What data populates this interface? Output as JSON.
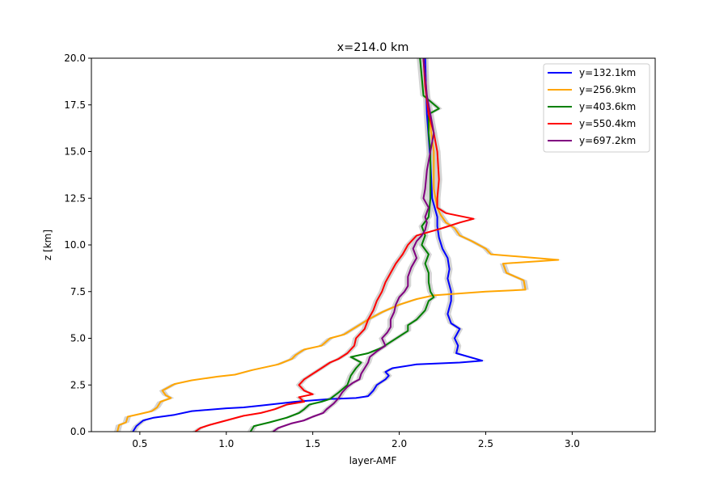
{
  "chart_data": {
    "type": "line",
    "title": "x=214.0 km",
    "xlabel": "layer-AMF",
    "ylabel": "z [km]",
    "xlim": [
      0.22,
      3.48
    ],
    "ylim": [
      0,
      20
    ],
    "xticks": [
      0.5,
      1.0,
      1.5,
      2.0,
      2.5,
      3.0
    ],
    "xtick_labels": [
      "0.5",
      "1.0",
      "1.5",
      "2.0",
      "2.5",
      "3.0"
    ],
    "yticks": [
      0,
      2.5,
      5,
      7.5,
      10,
      12.5,
      15,
      17.5,
      20
    ],
    "ytick_labels": [
      "0.0",
      "2.5",
      "5.0",
      "7.5",
      "10.0",
      "12.5",
      "15.0",
      "17.5",
      "20.0"
    ],
    "grid": false,
    "legend_position": "upper right",
    "uncertainty_band_color": "#cccccc",
    "series": [
      {
        "name": "y=132.1km",
        "color": "#0000ff",
        "points": [
          [
            0.46,
            0
          ],
          [
            0.48,
            0.3
          ],
          [
            0.52,
            0.6
          ],
          [
            0.58,
            0.75
          ],
          [
            0.7,
            0.9
          ],
          [
            0.8,
            1.1
          ],
          [
            1.0,
            1.25
          ],
          [
            1.1,
            1.3
          ],
          [
            1.2,
            1.4
          ],
          [
            1.4,
            1.6
          ],
          [
            1.6,
            1.75
          ],
          [
            1.75,
            1.8
          ],
          [
            1.82,
            1.9
          ],
          [
            1.85,
            2.2
          ],
          [
            1.87,
            2.5
          ],
          [
            1.92,
            2.8
          ],
          [
            1.94,
            3.0
          ],
          [
            1.92,
            3.2
          ],
          [
            1.96,
            3.4
          ],
          [
            2.1,
            3.6
          ],
          [
            2.35,
            3.7
          ],
          [
            2.48,
            3.8
          ],
          [
            2.33,
            4.2
          ],
          [
            2.34,
            4.6
          ],
          [
            2.32,
            5.0
          ],
          [
            2.35,
            5.5
          ],
          [
            2.3,
            5.8
          ],
          [
            2.28,
            6.3
          ],
          [
            2.3,
            7.0
          ],
          [
            2.3,
            7.5
          ],
          [
            2.28,
            8.2
          ],
          [
            2.29,
            8.7
          ],
          [
            2.28,
            9.3
          ],
          [
            2.25,
            9.8
          ],
          [
            2.23,
            10.4
          ],
          [
            2.22,
            11.0
          ],
          [
            2.22,
            11.5
          ],
          [
            2.19,
            12.5
          ],
          [
            2.18,
            14.5
          ],
          [
            2.16,
            17.0
          ],
          [
            2.15,
            20.0
          ]
        ]
      },
      {
        "name": "y=256.9km",
        "color": "#ffa500",
        "points": [
          [
            0.37,
            0
          ],
          [
            0.38,
            0.35
          ],
          [
            0.42,
            0.5
          ],
          [
            0.43,
            0.8
          ],
          [
            0.5,
            0.95
          ],
          [
            0.57,
            1.1
          ],
          [
            0.6,
            1.3
          ],
          [
            0.62,
            1.6
          ],
          [
            0.68,
            1.8
          ],
          [
            0.65,
            1.95
          ],
          [
            0.63,
            2.2
          ],
          [
            0.7,
            2.55
          ],
          [
            0.8,
            2.75
          ],
          [
            0.95,
            2.95
          ],
          [
            1.05,
            3.05
          ],
          [
            1.15,
            3.3
          ],
          [
            1.3,
            3.6
          ],
          [
            1.38,
            3.9
          ],
          [
            1.4,
            4.1
          ],
          [
            1.45,
            4.4
          ],
          [
            1.55,
            4.6
          ],
          [
            1.6,
            5.0
          ],
          [
            1.68,
            5.2
          ],
          [
            1.75,
            5.6
          ],
          [
            1.82,
            6.0
          ],
          [
            1.9,
            6.4
          ],
          [
            2.0,
            6.8
          ],
          [
            2.1,
            7.1
          ],
          [
            2.2,
            7.3
          ],
          [
            2.5,
            7.5
          ],
          [
            2.73,
            7.6
          ],
          [
            2.72,
            8.1
          ],
          [
            2.62,
            8.5
          ],
          [
            2.6,
            9.0
          ],
          [
            2.92,
            9.2
          ],
          [
            2.53,
            9.5
          ],
          [
            2.5,
            9.8
          ],
          [
            2.42,
            10.2
          ],
          [
            2.35,
            10.5
          ],
          [
            2.32,
            10.9
          ],
          [
            2.27,
            11.2
          ],
          [
            2.24,
            11.6
          ],
          [
            2.22,
            12.0
          ],
          [
            2.2,
            13.0
          ],
          [
            2.2,
            15.0
          ],
          [
            2.17,
            17.0
          ],
          [
            2.14,
            20.0
          ]
        ]
      },
      {
        "name": "y=403.6km",
        "color": "#008000",
        "points": [
          [
            1.14,
            0
          ],
          [
            1.16,
            0.3
          ],
          [
            1.25,
            0.5
          ],
          [
            1.35,
            0.75
          ],
          [
            1.42,
            1.0
          ],
          [
            1.45,
            1.2
          ],
          [
            1.48,
            1.45
          ],
          [
            1.55,
            1.6
          ],
          [
            1.6,
            1.75
          ],
          [
            1.65,
            2.1
          ],
          [
            1.7,
            2.5
          ],
          [
            1.72,
            3.0
          ],
          [
            1.75,
            3.4
          ],
          [
            1.78,
            3.7
          ],
          [
            1.72,
            4.0
          ],
          [
            1.82,
            4.2
          ],
          [
            1.9,
            4.5
          ],
          [
            1.95,
            4.8
          ],
          [
            2.0,
            5.1
          ],
          [
            2.05,
            5.4
          ],
          [
            2.05,
            5.7
          ],
          [
            2.1,
            6.0
          ],
          [
            2.15,
            6.5
          ],
          [
            2.17,
            7.0
          ],
          [
            2.2,
            7.2
          ],
          [
            2.18,
            7.5
          ],
          [
            2.17,
            8.0
          ],
          [
            2.17,
            8.5
          ],
          [
            2.15,
            9.0
          ],
          [
            2.17,
            9.5
          ],
          [
            2.13,
            10.0
          ],
          [
            2.15,
            10.5
          ],
          [
            2.13,
            11.0
          ],
          [
            2.17,
            11.5
          ],
          [
            2.18,
            12.5
          ],
          [
            2.18,
            14.0
          ],
          [
            2.18,
            15.0
          ],
          [
            2.17,
            16.0
          ],
          [
            2.17,
            17.0
          ],
          [
            2.23,
            17.3
          ],
          [
            2.14,
            18.0
          ],
          [
            2.13,
            19.0
          ],
          [
            2.12,
            20.0
          ]
        ]
      },
      {
        "name": "y=550.4km",
        "color": "#ff0000",
        "points": [
          [
            0.82,
            0
          ],
          [
            0.85,
            0.2
          ],
          [
            0.9,
            0.35
          ],
          [
            1.0,
            0.6
          ],
          [
            1.1,
            0.85
          ],
          [
            1.2,
            1.0
          ],
          [
            1.28,
            1.2
          ],
          [
            1.35,
            1.45
          ],
          [
            1.45,
            1.6
          ],
          [
            1.42,
            1.85
          ],
          [
            1.5,
            2.0
          ],
          [
            1.45,
            2.2
          ],
          [
            1.42,
            2.5
          ],
          [
            1.45,
            2.8
          ],
          [
            1.5,
            3.1
          ],
          [
            1.55,
            3.4
          ],
          [
            1.6,
            3.7
          ],
          [
            1.65,
            3.9
          ],
          [
            1.7,
            4.2
          ],
          [
            1.74,
            4.6
          ],
          [
            1.75,
            5.0
          ],
          [
            1.8,
            5.5
          ],
          [
            1.82,
            6.0
          ],
          [
            1.85,
            6.5
          ],
          [
            1.87,
            7.0
          ],
          [
            1.9,
            7.5
          ],
          [
            1.92,
            8.0
          ],
          [
            1.95,
            8.5
          ],
          [
            1.98,
            9.0
          ],
          [
            2.02,
            9.5
          ],
          [
            2.05,
            10.0
          ],
          [
            2.1,
            10.5
          ],
          [
            2.25,
            10.9
          ],
          [
            2.35,
            11.2
          ],
          [
            2.43,
            11.4
          ],
          [
            2.27,
            11.7
          ],
          [
            2.22,
            12.0
          ],
          [
            2.22,
            12.5
          ],
          [
            2.23,
            13.5
          ],
          [
            2.22,
            15.0
          ],
          [
            2.2,
            16.0
          ],
          [
            2.17,
            17.0
          ],
          [
            2.15,
            18.5
          ],
          [
            2.14,
            20.0
          ]
        ]
      },
      {
        "name": "y=697.2km",
        "color": "#800080",
        "points": [
          [
            1.27,
            0
          ],
          [
            1.3,
            0.2
          ],
          [
            1.38,
            0.45
          ],
          [
            1.45,
            0.6
          ],
          [
            1.5,
            0.8
          ],
          [
            1.56,
            1.0
          ],
          [
            1.58,
            1.2
          ],
          [
            1.62,
            1.5
          ],
          [
            1.65,
            1.8
          ],
          [
            1.67,
            2.1
          ],
          [
            1.7,
            2.4
          ],
          [
            1.73,
            2.6
          ],
          [
            1.77,
            2.8
          ],
          [
            1.78,
            3.1
          ],
          [
            1.8,
            3.4
          ],
          [
            1.82,
            3.7
          ],
          [
            1.83,
            4.0
          ],
          [
            1.87,
            4.3
          ],
          [
            1.92,
            4.6
          ],
          [
            1.9,
            5.0
          ],
          [
            1.93,
            5.3
          ],
          [
            1.95,
            5.6
          ],
          [
            1.95,
            6.0
          ],
          [
            1.97,
            6.4
          ],
          [
            1.98,
            6.8
          ],
          [
            2.0,
            7.2
          ],
          [
            2.03,
            7.5
          ],
          [
            2.05,
            7.8
          ],
          [
            2.05,
            8.3
          ],
          [
            2.07,
            8.8
          ],
          [
            2.1,
            9.3
          ],
          [
            2.08,
            9.8
          ],
          [
            2.1,
            10.2
          ],
          [
            2.13,
            10.5
          ],
          [
            2.15,
            10.8
          ],
          [
            2.16,
            11.2
          ],
          [
            2.15,
            11.5
          ],
          [
            2.17,
            12.0
          ],
          [
            2.14,
            12.5
          ],
          [
            2.15,
            13.0
          ],
          [
            2.16,
            14.0
          ],
          [
            2.18,
            15.0
          ],
          [
            2.2,
            16.0
          ],
          [
            2.18,
            17.0
          ],
          [
            2.16,
            18.0
          ],
          [
            2.14,
            20.0
          ]
        ]
      }
    ]
  }
}
